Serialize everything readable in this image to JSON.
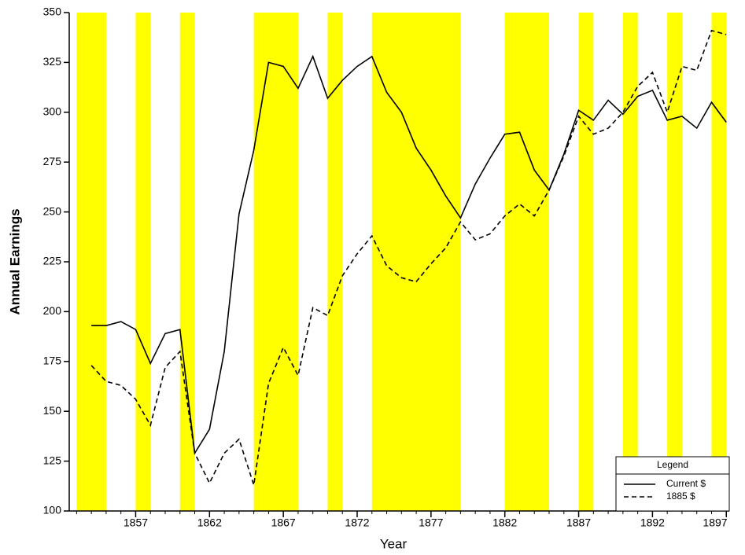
{
  "chart_data": {
    "type": "line",
    "xlabel": "Year",
    "ylabel": "Annual Earnings",
    "x": [
      1854,
      1855,
      1856,
      1857,
      1858,
      1859,
      1860,
      1861,
      1862,
      1863,
      1864,
      1865,
      1866,
      1867,
      1868,
      1869,
      1870,
      1871,
      1872,
      1873,
      1874,
      1875,
      1876,
      1877,
      1878,
      1879,
      1880,
      1881,
      1882,
      1883,
      1884,
      1885,
      1886,
      1887,
      1888,
      1889,
      1890,
      1891,
      1892,
      1893,
      1894,
      1895,
      1896,
      1897
    ],
    "series": [
      {
        "name": "Current $",
        "color": "#000000",
        "dash": "solid",
        "values": [
          193,
          193,
          195,
          191,
          174,
          189,
          191,
          129,
          141,
          180,
          249,
          281,
          325,
          323,
          312,
          328,
          307,
          316,
          323,
          328,
          310,
          300,
          282,
          271,
          258,
          247,
          264,
          277,
          289,
          290,
          271,
          261,
          279,
          301,
          296,
          306,
          299,
          308,
          311,
          296,
          298,
          292,
          305,
          295
        ]
      },
      {
        "name": "1885 $",
        "color": "#000000",
        "dash": "dashed",
        "values": [
          173,
          165,
          163,
          156,
          143,
          172,
          180,
          129,
          114,
          129,
          136,
          113,
          164,
          182,
          168,
          202,
          198,
          218,
          229,
          238,
          223,
          217,
          215,
          224,
          232,
          245,
          236,
          239,
          248,
          254,
          248,
          261,
          278,
          298,
          289,
          292,
          300,
          313,
          320,
          300,
          323,
          321,
          341,
          339
        ]
      }
    ],
    "bands": [
      [
        1853,
        1855
      ],
      [
        1857,
        1858
      ],
      [
        1860,
        1861
      ],
      [
        1865,
        1868
      ],
      [
        1870,
        1871
      ],
      [
        1873,
        1879
      ],
      [
        1882,
        1885
      ],
      [
        1887,
        1888
      ],
      [
        1890,
        1891
      ],
      [
        1893,
        1894
      ],
      [
        1896,
        1897
      ]
    ],
    "band_color": "#ffff00",
    "xlim": [
      1852.5,
      1897.2
    ],
    "ylim": [
      100,
      350
    ],
    "xticks": [
      1857,
      1862,
      1867,
      1872,
      1877,
      1882,
      1887,
      1892,
      1897
    ],
    "xminorticks": [
      1853,
      1854,
      1855,
      1856,
      1858,
      1859,
      1860,
      1861,
      1863,
      1864,
      1865,
      1866,
      1868,
      1869,
      1870,
      1871,
      1873,
      1874,
      1875,
      1876,
      1878,
      1879,
      1880,
      1881,
      1883,
      1884,
      1885,
      1886,
      1888,
      1889,
      1890,
      1891,
      1893,
      1894,
      1895,
      1896
    ],
    "yticks": [
      100,
      125,
      150,
      175,
      200,
      225,
      250,
      275,
      300,
      325,
      350
    ],
    "legend_title": "Legend",
    "legend": "lower right"
  }
}
